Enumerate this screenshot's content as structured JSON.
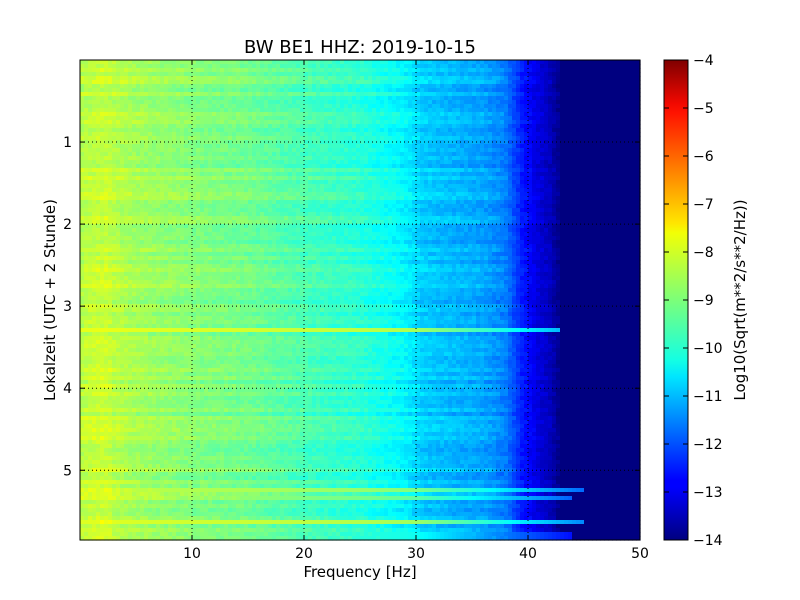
{
  "chart_data": {
    "type": "heatmap",
    "title": "BW BE1 HHZ: 2019-10-15",
    "xlabel": "Frequency [Hz]",
    "ylabel": "Lokalzeit (UTC + 2 Stunde)",
    "xlim": [
      0,
      50
    ],
    "ylim": [
      5.85,
      0.0
    ],
    "x_ticks": [
      10,
      20,
      30,
      40,
      50
    ],
    "y_ticks": [
      1,
      2,
      3,
      4,
      5
    ],
    "grid": true,
    "colorbar": {
      "label": "Log10(Sqrt(m**2/s**2/Hz))",
      "range": [
        -14,
        -4
      ],
      "ticks": [
        -4,
        -5,
        -6,
        -7,
        -8,
        -9,
        -10,
        -11,
        -12,
        -13,
        -14
      ],
      "colormap": "jet"
    },
    "spectrum_profile": {
      "frequency": [
        0,
        2,
        5,
        10,
        15,
        20,
        25,
        29,
        30.5,
        33,
        36,
        38,
        39.5,
        41,
        42,
        43,
        50
      ],
      "level": [
        -8.5,
        -8.3,
        -8.6,
        -8.9,
        -9.1,
        -9.5,
        -9.8,
        -10.3,
        -10.7,
        -10.9,
        -11.1,
        -11.5,
        -12.5,
        -13.1,
        -13.4,
        -14,
        -14
      ]
    },
    "bright_lines": [
      {
        "time": 3.28,
        "level": -8.0,
        "fmax": 43
      },
      {
        "time": 5.23,
        "level": -8.4,
        "fmax": 45
      },
      {
        "time": 5.33,
        "level": -8.7,
        "fmax": 44
      },
      {
        "time": 5.62,
        "level": -8.1,
        "fmax": 45
      },
      {
        "time": 5.8,
        "level": -9.5,
        "fmax": 44
      }
    ]
  }
}
